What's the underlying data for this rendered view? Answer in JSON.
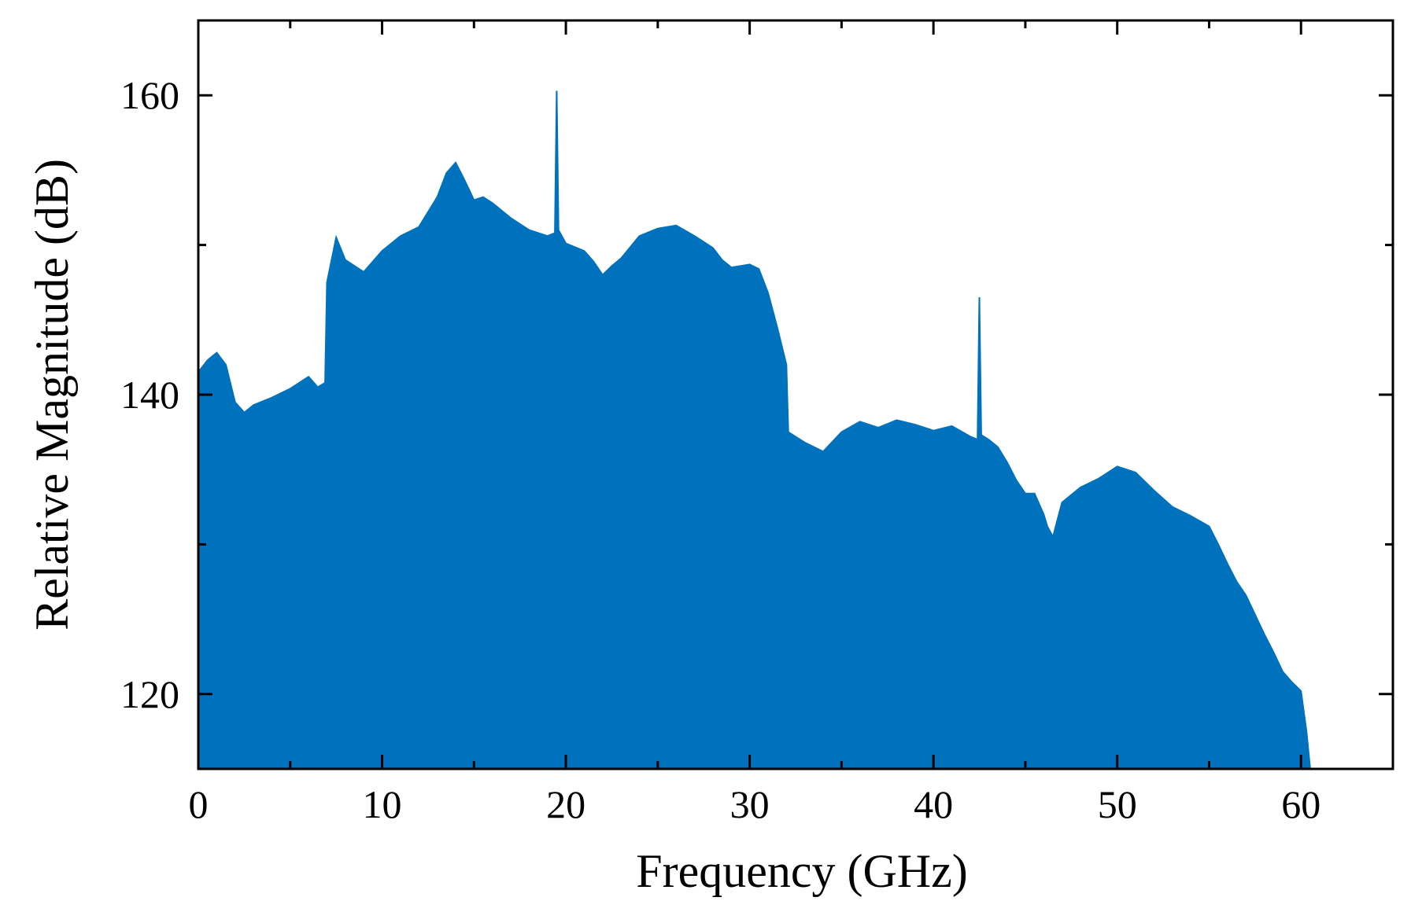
{
  "chart_data": {
    "type": "area",
    "xlabel": "Frequency (GHz)",
    "ylabel": "Relative Magnitude (dB)",
    "xlim": [
      0,
      65
    ],
    "ylim": [
      115,
      165
    ],
    "x_ticks": [
      0,
      10,
      20,
      30,
      40,
      50,
      60
    ],
    "x_tick_labels": [
      "0",
      "10",
      "20",
      "30",
      "40",
      "50",
      "60"
    ],
    "x_minor_ticks": [
      5,
      15,
      25,
      35,
      45,
      55
    ],
    "y_ticks": [
      120,
      140,
      160
    ],
    "y_tick_labels": [
      "120",
      "140",
      "160"
    ],
    "y_minor_ticks": [
      130,
      150
    ],
    "grid": false,
    "legend": "none",
    "fill_color": "#0072BD",
    "series": [
      {
        "x": [
          0,
          0.5,
          1.0,
          1.5,
          2.0,
          2.5,
          3.0,
          4.0,
          5.0,
          6.0,
          6.5,
          6.9,
          7.0,
          7.5,
          8.0,
          9.0,
          10.0,
          11.0,
          12.0,
          13.0,
          13.5,
          14.0,
          14.5,
          15.0,
          15.5,
          16.0,
          17.0,
          18.0,
          19.0,
          19.4,
          19.5,
          19.6,
          20.0,
          21.0,
          21.5,
          22.0,
          22.5,
          23.0,
          24.0,
          25.0,
          26.0,
          27.0,
          28.0,
          28.5,
          29.0,
          30.0,
          30.5,
          31.0,
          31.5,
          32.0,
          32.1,
          33.0,
          34.0,
          35.0,
          36.0,
          37.0,
          38.0,
          39.0,
          40.0,
          41.0,
          42.0,
          42.4,
          42.5,
          42.6,
          43.0,
          43.5,
          44.0,
          44.5,
          45.0,
          45.5,
          46.0,
          46.2,
          46.5,
          47.0,
          48.0,
          49.0,
          50.0,
          51.0,
          52.0,
          53.0,
          54.0,
          55.0,
          55.5,
          56.0,
          56.5,
          57.0,
          58.0,
          58.5,
          59.0,
          59.5,
          60.0,
          60.3,
          60.5
        ],
        "values": [
          141.5,
          142.3,
          142.8,
          142.0,
          139.5,
          138.8,
          139.3,
          139.8,
          140.4,
          141.2,
          140.5,
          140.8,
          147.5,
          150.5,
          149.0,
          148.2,
          149.6,
          150.6,
          151.2,
          153.2,
          154.8,
          155.5,
          154.3,
          153.0,
          153.2,
          152.8,
          151.8,
          151.0,
          150.6,
          150.8,
          160.3,
          151.0,
          150.1,
          149.6,
          148.9,
          148.0,
          148.6,
          149.1,
          150.6,
          151.1,
          151.3,
          150.6,
          149.8,
          149.0,
          148.5,
          148.7,
          148.4,
          146.8,
          144.5,
          142.0,
          137.5,
          136.8,
          136.2,
          137.5,
          138.2,
          137.8,
          138.3,
          138.0,
          137.6,
          137.9,
          137.2,
          137.0,
          146.5,
          137.3,
          137.0,
          136.5,
          135.5,
          134.3,
          133.4,
          133.4,
          132.0,
          131.2,
          130.5,
          132.8,
          133.8,
          134.4,
          135.2,
          134.8,
          133.6,
          132.5,
          131.9,
          131.2,
          130.0,
          128.7,
          127.5,
          126.6,
          124.0,
          122.8,
          121.5,
          120.8,
          120.2,
          117.5,
          115.0
        ]
      }
    ]
  }
}
